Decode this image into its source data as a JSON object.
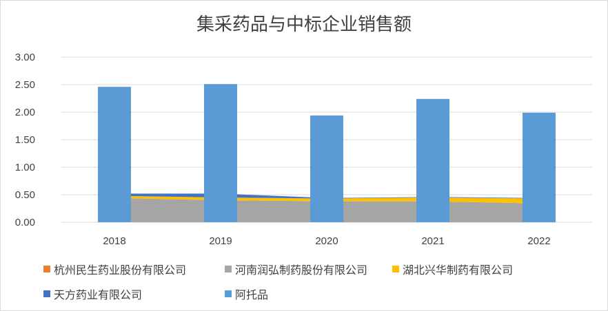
{
  "chart_data": {
    "type": "bar",
    "title": "集采药品与中标企业销售额",
    "categories": [
      "2018",
      "2019",
      "2020",
      "2021",
      "2022"
    ],
    "ylim": [
      0,
      3
    ],
    "yticks": [
      "0.00",
      "0.50",
      "1.00",
      "1.50",
      "2.00",
      "2.50",
      "3.00"
    ],
    "grid": true,
    "legend_position": "bottom",
    "series": [
      {
        "name": "杭州民生药业股份有限公司",
        "kind": "area",
        "color": "#ed7d31",
        "values": [
          0,
          0,
          0,
          0,
          0
        ]
      },
      {
        "name": "河南润弘制药股份有限公司",
        "kind": "area",
        "color": "#a5a5a5",
        "values": [
          0.44,
          0.4,
          0.38,
          0.38,
          0.34
        ]
      },
      {
        "name": "湖北兴华制药有限公司",
        "kind": "area",
        "color": "#ffc000",
        "values": [
          0.04,
          0.05,
          0.05,
          0.07,
          0.09
        ]
      },
      {
        "name": "天方药业有限公司",
        "kind": "area",
        "color": "#4472c4",
        "values": [
          0.04,
          0.07,
          0.01,
          0.01,
          0.01
        ]
      },
      {
        "name": "阿托品",
        "kind": "bar",
        "color": "#5b9bd5",
        "values": [
          2.46,
          2.51,
          1.94,
          2.24,
          1.99
        ]
      }
    ]
  }
}
